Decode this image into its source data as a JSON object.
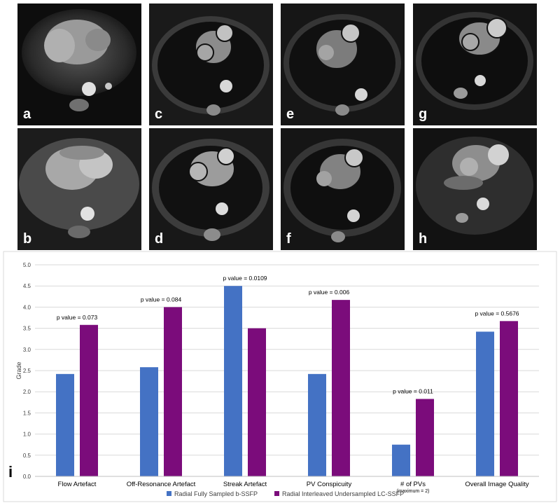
{
  "panels": {
    "a": "a",
    "b": "b",
    "c": "c",
    "d": "d",
    "e": "e",
    "f": "f",
    "g": "g",
    "h": "h"
  },
  "figure_letter": "i",
  "colors": {
    "series1": "#4472C4",
    "series2": "#7B0C7B",
    "grid": "#D9D9D9",
    "axis_text": "#404040"
  },
  "chart_data": {
    "type": "bar",
    "title": "",
    "xlabel": "",
    "ylabel": "Grade",
    "ylim": [
      0,
      5
    ],
    "yticks": [
      "0.0",
      "0.5",
      "1.0",
      "1.5",
      "2.0",
      "2.5",
      "3.0",
      "3.5",
      "4.0",
      "4.5",
      "5.0"
    ],
    "categories": [
      "Flow Artefact",
      "Off-Resonance Artefact",
      "Streak Artefact",
      "PV Conspicuity",
      "# of PVs",
      "Overall Image Quality"
    ],
    "category_notes": [
      "",
      "",
      "",
      "",
      "(maximum = 2)",
      ""
    ],
    "series": [
      {
        "name": "Radial Fully Sampled b-SSFP",
        "values": [
          2.42,
          2.58,
          4.5,
          2.42,
          0.75,
          3.42
        ]
      },
      {
        "name": "Radial Interleaved Undersampled LC-SSFP",
        "values": [
          3.58,
          4.0,
          3.5,
          4.17,
          1.83,
          3.67
        ]
      }
    ],
    "annotations": [
      "p value = 0.073",
      "p value = 0.084",
      "p value = 0.0109",
      "p value = 0.006",
      "p value = 0.011",
      "p value = 0.5676"
    ],
    "grid": true,
    "legend": "bottom"
  }
}
